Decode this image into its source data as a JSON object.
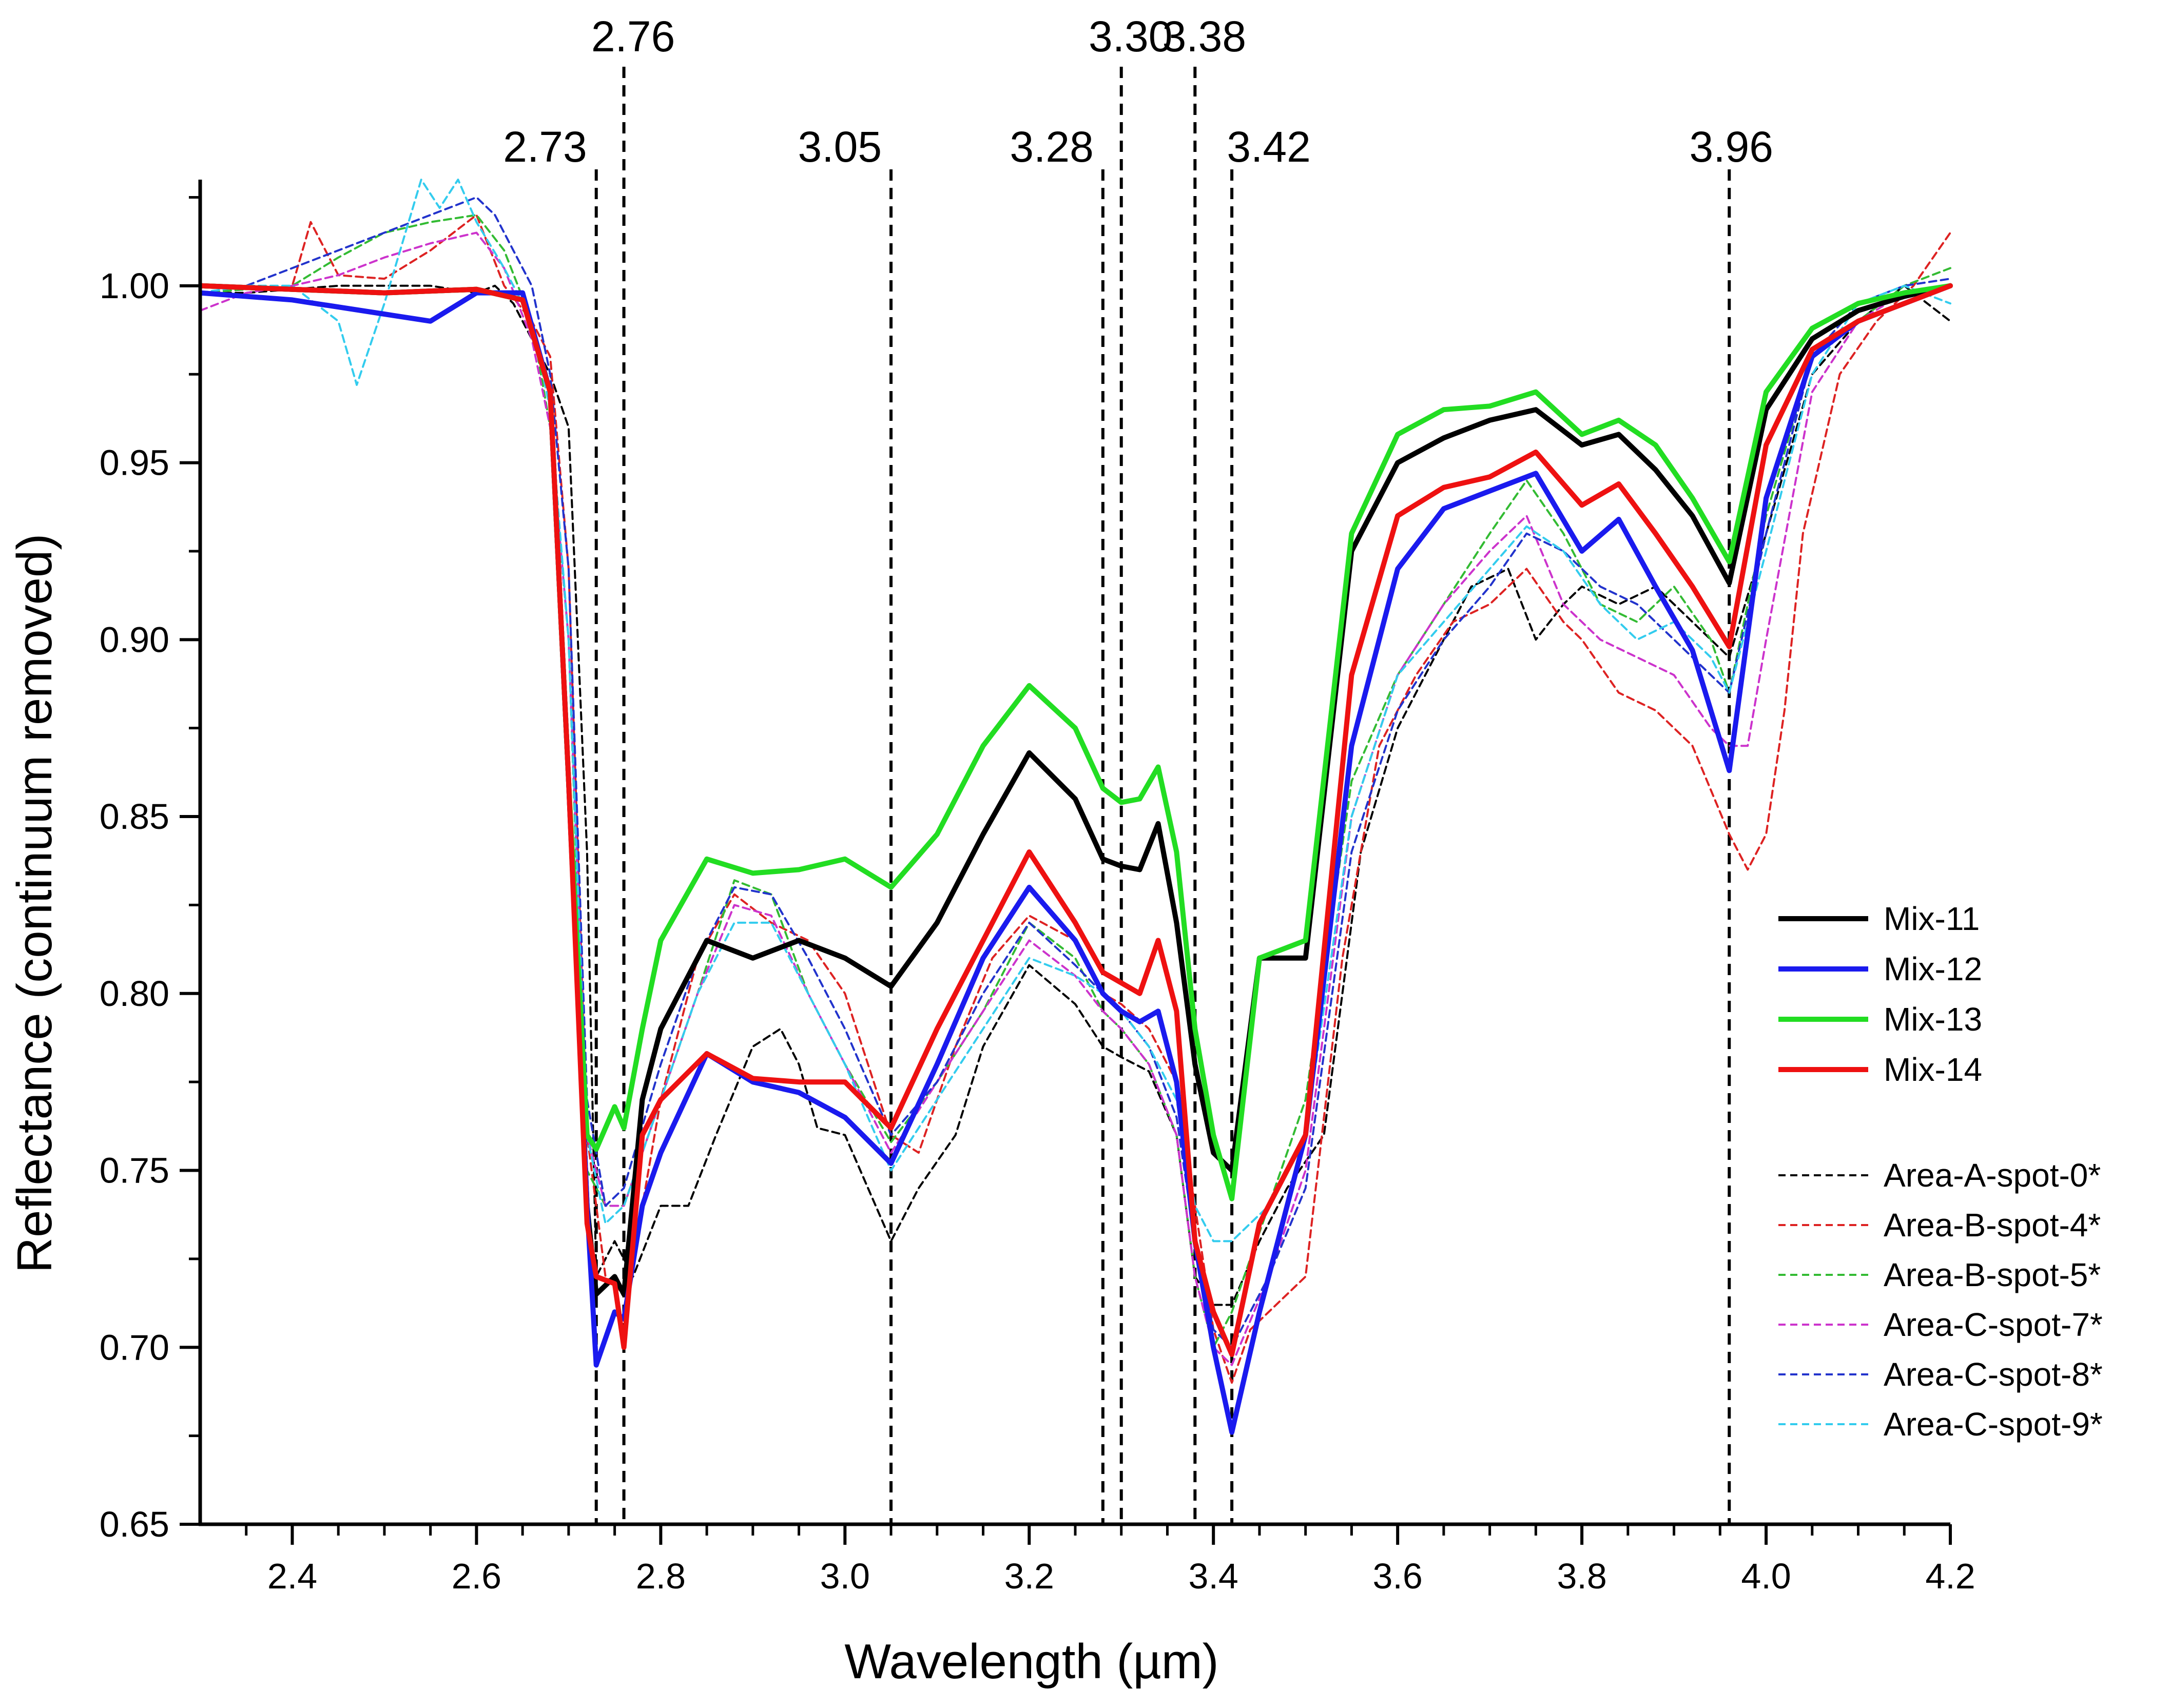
{
  "chart_data": {
    "type": "line",
    "title": "",
    "xlabel": "Wavelength (µm)",
    "ylabel": "Reflectance (continuum removed)",
    "xlim": [
      2.3,
      4.2
    ],
    "ylim": [
      0.65,
      1.03
    ],
    "x_ticks": [
      2.4,
      2.6,
      2.8,
      3.0,
      3.2,
      3.4,
      3.6,
      3.8,
      4.0,
      4.2
    ],
    "x_tick_labels": [
      "2.4",
      "2.6",
      "2.8",
      "3.0",
      "3.2",
      "3.4",
      "3.6",
      "3.8",
      "4.0",
      "4.2"
    ],
    "y_ticks": [
      0.65,
      0.7,
      0.75,
      0.8,
      0.85,
      0.9,
      0.95,
      1.0
    ],
    "y_tick_labels": [
      "0.65",
      "0.70",
      "0.75",
      "0.80",
      "0.85",
      "0.90",
      "0.95",
      "1.00"
    ],
    "grid": false,
    "legend_position": "right",
    "reference_lines": [
      {
        "x": 2.73,
        "label": "2.73",
        "row": "lower"
      },
      {
        "x": 2.76,
        "label": "2.76",
        "row": "upper"
      },
      {
        "x": 3.05,
        "label": "3.05",
        "row": "lower"
      },
      {
        "x": 3.28,
        "label": "3.28",
        "row": "lower"
      },
      {
        "x": 3.3,
        "label": "3.30",
        "row": "upper"
      },
      {
        "x": 3.38,
        "label": "3.38",
        "row": "upper"
      },
      {
        "x": 3.42,
        "label": "3.42",
        "row": "lower"
      },
      {
        "x": 3.96,
        "label": "3.96",
        "row": "lower"
      }
    ],
    "series": [
      {
        "name": "Mix-11",
        "color": "#000000",
        "style": "solid",
        "x": [
          2.3,
          2.4,
          2.5,
          2.6,
          2.65,
          2.68,
          2.7,
          2.72,
          2.73,
          2.75,
          2.76,
          2.78,
          2.8,
          2.85,
          2.9,
          2.95,
          3.0,
          3.05,
          3.1,
          3.15,
          3.2,
          3.25,
          3.28,
          3.3,
          3.32,
          3.34,
          3.36,
          3.38,
          3.4,
          3.42,
          3.45,
          3.5,
          3.55,
          3.6,
          3.65,
          3.7,
          3.75,
          3.8,
          3.84,
          3.88,
          3.92,
          3.96,
          4.0,
          4.05,
          4.1,
          4.15,
          4.2
        ],
        "y": [
          1.0,
          0.999,
          0.998,
          0.999,
          0.996,
          0.97,
          0.86,
          0.74,
          0.715,
          0.72,
          0.715,
          0.77,
          0.79,
          0.815,
          0.81,
          0.815,
          0.81,
          0.802,
          0.82,
          0.845,
          0.868,
          0.855,
          0.838,
          0.836,
          0.835,
          0.848,
          0.82,
          0.78,
          0.755,
          0.75,
          0.81,
          0.81,
          0.925,
          0.95,
          0.957,
          0.962,
          0.965,
          0.955,
          0.958,
          0.948,
          0.935,
          0.916,
          0.965,
          0.985,
          0.993,
          0.997,
          1.0
        ]
      },
      {
        "name": "Mix-12",
        "color": "#1a1aee",
        "style": "solid",
        "x": [
          2.3,
          2.4,
          2.5,
          2.55,
          2.6,
          2.65,
          2.68,
          2.7,
          2.72,
          2.73,
          2.75,
          2.76,
          2.78,
          2.8,
          2.85,
          2.9,
          2.95,
          3.0,
          3.05,
          3.1,
          3.15,
          3.2,
          3.25,
          3.28,
          3.3,
          3.32,
          3.34,
          3.36,
          3.38,
          3.4,
          3.42,
          3.45,
          3.5,
          3.55,
          3.6,
          3.65,
          3.7,
          3.75,
          3.8,
          3.84,
          3.88,
          3.92,
          3.96,
          4.0,
          4.05,
          4.1,
          4.15,
          4.2
        ],
        "y": [
          0.998,
          0.996,
          0.992,
          0.99,
          0.998,
          0.998,
          0.97,
          0.86,
          0.74,
          0.695,
          0.71,
          0.708,
          0.74,
          0.755,
          0.783,
          0.775,
          0.772,
          0.765,
          0.752,
          0.78,
          0.81,
          0.83,
          0.815,
          0.8,
          0.795,
          0.792,
          0.795,
          0.775,
          0.73,
          0.7,
          0.676,
          0.71,
          0.76,
          0.87,
          0.92,
          0.937,
          0.942,
          0.947,
          0.925,
          0.934,
          0.915,
          0.897,
          0.863,
          0.94,
          0.98,
          0.99,
          0.995,
          1.0
        ]
      },
      {
        "name": "Mix-13",
        "color": "#22dd22",
        "style": "solid",
        "x": [
          2.3,
          2.4,
          2.5,
          2.6,
          2.65,
          2.68,
          2.7,
          2.72,
          2.73,
          2.75,
          2.76,
          2.78,
          2.8,
          2.85,
          2.9,
          2.95,
          3.0,
          3.05,
          3.1,
          3.15,
          3.2,
          3.25,
          3.28,
          3.3,
          3.32,
          3.34,
          3.36,
          3.38,
          3.4,
          3.42,
          3.45,
          3.5,
          3.55,
          3.6,
          3.65,
          3.7,
          3.75,
          3.8,
          3.84,
          3.88,
          3.92,
          3.96,
          4.0,
          4.05,
          4.1,
          4.15,
          4.2
        ],
        "y": [
          1.0,
          0.999,
          0.998,
          0.999,
          0.996,
          0.97,
          0.86,
          0.76,
          0.756,
          0.768,
          0.762,
          0.79,
          0.815,
          0.838,
          0.834,
          0.835,
          0.838,
          0.83,
          0.845,
          0.87,
          0.887,
          0.875,
          0.858,
          0.854,
          0.855,
          0.864,
          0.84,
          0.79,
          0.76,
          0.742,
          0.81,
          0.815,
          0.93,
          0.958,
          0.965,
          0.966,
          0.97,
          0.958,
          0.962,
          0.955,
          0.94,
          0.922,
          0.97,
          0.988,
          0.995,
          0.998,
          1.0
        ]
      },
      {
        "name": "Mix-14",
        "color": "#ee1111",
        "style": "solid",
        "x": [
          2.3,
          2.4,
          2.5,
          2.6,
          2.65,
          2.68,
          2.7,
          2.72,
          2.73,
          2.75,
          2.76,
          2.78,
          2.8,
          2.85,
          2.9,
          2.95,
          3.0,
          3.05,
          3.1,
          3.15,
          3.2,
          3.25,
          3.28,
          3.3,
          3.32,
          3.34,
          3.36,
          3.38,
          3.4,
          3.42,
          3.45,
          3.5,
          3.55,
          3.6,
          3.65,
          3.7,
          3.75,
          3.8,
          3.84,
          3.88,
          3.92,
          3.96,
          4.0,
          4.05,
          4.1,
          4.15,
          4.2
        ],
        "y": [
          1.0,
          0.999,
          0.998,
          0.999,
          0.996,
          0.97,
          0.86,
          0.735,
          0.72,
          0.718,
          0.7,
          0.76,
          0.77,
          0.783,
          0.776,
          0.775,
          0.775,
          0.762,
          0.79,
          0.815,
          0.84,
          0.82,
          0.806,
          0.803,
          0.8,
          0.815,
          0.795,
          0.73,
          0.71,
          0.698,
          0.735,
          0.76,
          0.89,
          0.935,
          0.943,
          0.946,
          0.953,
          0.938,
          0.944,
          0.93,
          0.915,
          0.898,
          0.955,
          0.982,
          0.99,
          0.995,
          1.0
        ]
      },
      {
        "name": "Area-A-spot-0*",
        "color": "#000000",
        "style": "dashed",
        "x": [
          2.3,
          2.35,
          2.4,
          2.45,
          2.5,
          2.55,
          2.6,
          2.62,
          2.64,
          2.66,
          2.68,
          2.7,
          2.72,
          2.73,
          2.75,
          2.77,
          2.8,
          2.83,
          2.86,
          2.9,
          2.93,
          2.95,
          2.97,
          3.0,
          3.05,
          3.08,
          3.12,
          3.15,
          3.2,
          3.25,
          3.28,
          3.3,
          3.33,
          3.36,
          3.38,
          3.4,
          3.42,
          3.45,
          3.48,
          3.52,
          3.56,
          3.6,
          3.64,
          3.68,
          3.72,
          3.75,
          3.78,
          3.8,
          3.84,
          3.88,
          3.92,
          3.96,
          4.0,
          4.05,
          4.1,
          4.15,
          4.2
        ],
        "y": [
          0.998,
          0.998,
          0.999,
          1.0,
          1.0,
          1.0,
          0.998,
          1.0,
          0.995,
          0.985,
          0.975,
          0.96,
          0.84,
          0.72,
          0.73,
          0.72,
          0.74,
          0.74,
          0.76,
          0.785,
          0.79,
          0.78,
          0.762,
          0.76,
          0.73,
          0.745,
          0.76,
          0.785,
          0.808,
          0.797,
          0.785,
          0.782,
          0.778,
          0.76,
          0.72,
          0.712,
          0.712,
          0.73,
          0.745,
          0.76,
          0.84,
          0.875,
          0.895,
          0.915,
          0.92,
          0.9,
          0.91,
          0.915,
          0.91,
          0.915,
          0.905,
          0.895,
          0.93,
          0.975,
          0.99,
          1.0,
          0.99
        ]
      },
      {
        "name": "Area-B-spot-4*",
        "color": "#dd2222",
        "style": "dashed",
        "x": [
          2.3,
          2.35,
          2.4,
          2.42,
          2.45,
          2.5,
          2.55,
          2.6,
          2.63,
          2.66,
          2.68,
          2.7,
          2.72,
          2.74,
          2.76,
          2.78,
          2.8,
          2.84,
          2.88,
          2.92,
          2.96,
          3.0,
          3.05,
          3.08,
          3.12,
          3.16,
          3.2,
          3.25,
          3.28,
          3.3,
          3.33,
          3.36,
          3.38,
          3.4,
          3.42,
          3.44,
          3.46,
          3.5,
          3.54,
          3.58,
          3.62,
          3.66,
          3.7,
          3.74,
          3.78,
          3.8,
          3.84,
          3.88,
          3.92,
          3.96,
          3.98,
          4.0,
          4.02,
          4.04,
          4.08,
          4.12,
          4.16,
          4.2
        ],
        "y": [
          0.998,
          0.999,
          1.0,
          1.018,
          1.003,
          1.002,
          1.01,
          1.02,
          1.0,
          0.99,
          0.98,
          0.92,
          0.76,
          0.72,
          0.715,
          0.74,
          0.77,
          0.81,
          0.828,
          0.82,
          0.815,
          0.8,
          0.76,
          0.755,
          0.785,
          0.81,
          0.822,
          0.815,
          0.8,
          0.797,
          0.79,
          0.775,
          0.74,
          0.705,
          0.69,
          0.705,
          0.71,
          0.72,
          0.81,
          0.87,
          0.89,
          0.905,
          0.91,
          0.92,
          0.905,
          0.9,
          0.885,
          0.88,
          0.87,
          0.845,
          0.835,
          0.845,
          0.88,
          0.93,
          0.975,
          0.99,
          1.0,
          1.015
        ]
      },
      {
        "name": "Area-B-spot-5*",
        "color": "#33bb33",
        "style": "dashed",
        "x": [
          2.3,
          2.35,
          2.4,
          2.45,
          2.5,
          2.55,
          2.6,
          2.63,
          2.66,
          2.68,
          2.7,
          2.72,
          2.74,
          2.76,
          2.8,
          2.84,
          2.88,
          2.92,
          2.96,
          3.0,
          3.05,
          3.1,
          3.15,
          3.2,
          3.25,
          3.28,
          3.3,
          3.33,
          3.36,
          3.38,
          3.4,
          3.42,
          3.46,
          3.5,
          3.55,
          3.6,
          3.65,
          3.7,
          3.74,
          3.78,
          3.82,
          3.86,
          3.9,
          3.94,
          3.96,
          4.0,
          4.05,
          4.1,
          4.15,
          4.2
        ],
        "y": [
          0.998,
          0.999,
          1.0,
          1.008,
          1.015,
          1.018,
          1.02,
          1.01,
          0.99,
          0.96,
          0.9,
          0.75,
          0.74,
          0.74,
          0.77,
          0.8,
          0.832,
          0.828,
          0.8,
          0.78,
          0.758,
          0.775,
          0.795,
          0.82,
          0.81,
          0.795,
          0.79,
          0.78,
          0.76,
          0.72,
          0.7,
          0.71,
          0.74,
          0.77,
          0.86,
          0.89,
          0.91,
          0.93,
          0.945,
          0.93,
          0.91,
          0.905,
          0.915,
          0.9,
          0.885,
          0.935,
          0.98,
          0.99,
          1.0,
          1.005
        ]
      },
      {
        "name": "Area-C-spot-7*",
        "color": "#cc33cc",
        "style": "dashed",
        "x": [
          2.3,
          2.35,
          2.4,
          2.45,
          2.5,
          2.55,
          2.6,
          2.63,
          2.66,
          2.68,
          2.7,
          2.72,
          2.74,
          2.76,
          2.8,
          2.84,
          2.88,
          2.92,
          2.96,
          3.0,
          3.05,
          3.1,
          3.15,
          3.2,
          3.25,
          3.28,
          3.3,
          3.33,
          3.36,
          3.38,
          3.4,
          3.42,
          3.46,
          3.5,
          3.55,
          3.6,
          3.65,
          3.7,
          3.74,
          3.78,
          3.82,
          3.86,
          3.9,
          3.94,
          3.96,
          3.98,
          4.0,
          4.05,
          4.1,
          4.15,
          4.2
        ],
        "y": [
          0.993,
          0.998,
          1.0,
          1.003,
          1.008,
          1.012,
          1.015,
          1.005,
          0.985,
          0.96,
          0.9,
          0.76,
          0.74,
          0.74,
          0.77,
          0.8,
          0.825,
          0.822,
          0.8,
          0.78,
          0.755,
          0.775,
          0.795,
          0.815,
          0.805,
          0.795,
          0.79,
          0.78,
          0.76,
          0.72,
          0.7,
          0.695,
          0.72,
          0.75,
          0.85,
          0.89,
          0.91,
          0.925,
          0.935,
          0.91,
          0.9,
          0.895,
          0.89,
          0.875,
          0.87,
          0.87,
          0.9,
          0.97,
          0.99,
          0.998,
          1.0
        ]
      },
      {
        "name": "Area-C-spot-8*",
        "color": "#2233cc",
        "style": "dashed",
        "x": [
          2.3,
          2.35,
          2.4,
          2.45,
          2.5,
          2.55,
          2.6,
          2.62,
          2.64,
          2.66,
          2.68,
          2.7,
          2.72,
          2.74,
          2.76,
          2.8,
          2.84,
          2.88,
          2.92,
          2.96,
          3.0,
          3.05,
          3.1,
          3.15,
          3.2,
          3.25,
          3.28,
          3.3,
          3.33,
          3.36,
          3.38,
          3.4,
          3.42,
          3.46,
          3.5,
          3.55,
          3.6,
          3.65,
          3.7,
          3.74,
          3.78,
          3.82,
          3.86,
          3.9,
          3.94,
          3.96,
          4.0,
          4.05,
          4.1,
          4.15,
          4.2
        ],
        "y": [
          0.998,
          1.0,
          1.005,
          1.01,
          1.015,
          1.02,
          1.025,
          1.02,
          1.01,
          1.0,
          0.975,
          0.92,
          0.77,
          0.74,
          0.745,
          0.78,
          0.81,
          0.83,
          0.828,
          0.81,
          0.79,
          0.76,
          0.775,
          0.8,
          0.82,
          0.808,
          0.8,
          0.795,
          0.785,
          0.765,
          0.73,
          0.705,
          0.7,
          0.72,
          0.745,
          0.84,
          0.88,
          0.9,
          0.915,
          0.93,
          0.925,
          0.915,
          0.91,
          0.9,
          0.89,
          0.885,
          0.93,
          0.98,
          0.995,
          1.0,
          1.002
        ]
      },
      {
        "name": "Area-C-spot-9*",
        "color": "#33ccee",
        "style": "dashed",
        "x": [
          2.3,
          2.35,
          2.4,
          2.45,
          2.47,
          2.5,
          2.54,
          2.56,
          2.58,
          2.6,
          2.63,
          2.66,
          2.68,
          2.7,
          2.72,
          2.74,
          2.76,
          2.8,
          2.84,
          2.88,
          2.92,
          2.96,
          3.0,
          3.05,
          3.1,
          3.15,
          3.2,
          3.25,
          3.28,
          3.3,
          3.33,
          3.36,
          3.38,
          3.4,
          3.42,
          3.46,
          3.5,
          3.55,
          3.6,
          3.65,
          3.7,
          3.74,
          3.78,
          3.82,
          3.86,
          3.9,
          3.94,
          3.96,
          4.0,
          4.05,
          4.1,
          4.15,
          4.2
        ],
        "y": [
          0.998,
          1.0,
          1.0,
          0.99,
          0.972,
          0.995,
          1.03,
          1.022,
          1.03,
          1.018,
          1.005,
          0.99,
          0.965,
          0.9,
          0.76,
          0.735,
          0.74,
          0.77,
          0.8,
          0.82,
          0.82,
          0.8,
          0.78,
          0.75,
          0.77,
          0.79,
          0.81,
          0.805,
          0.8,
          0.795,
          0.785,
          0.77,
          0.74,
          0.73,
          0.73,
          0.74,
          0.76,
          0.85,
          0.89,
          0.905,
          0.92,
          0.932,
          0.925,
          0.91,
          0.9,
          0.905,
          0.895,
          0.885,
          0.925,
          0.975,
          0.995,
          1.0,
          0.995
        ]
      }
    ]
  }
}
